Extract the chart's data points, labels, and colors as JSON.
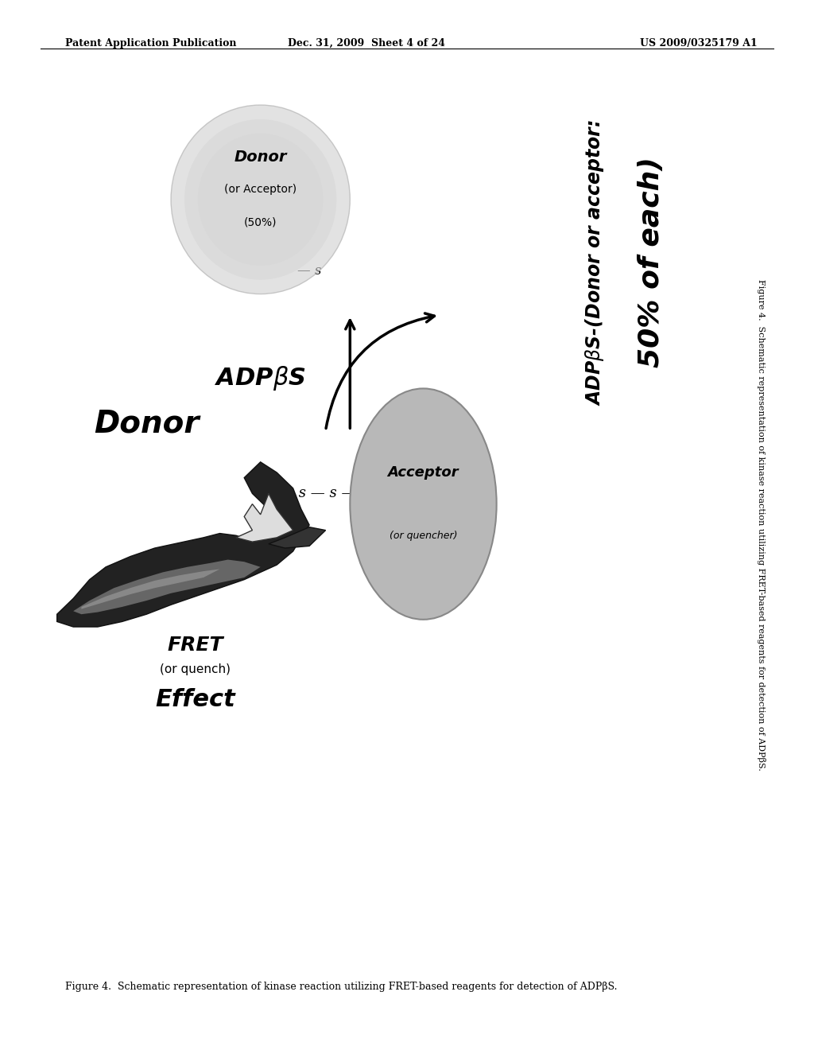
{
  "bg_color": "#ffffff",
  "header_left": "Patent Application Publication",
  "header_center": "Dec. 31, 2009  Sheet 4 of 24",
  "header_right": "US 2009/0325179 A1",
  "figure_caption": "Figure 4.  Schematic representation of kinase reaction utilizing FRET-based reagents for detection of ADPβS.",
  "fret_label_1": "FRET",
  "fret_label_2": "(or quench)",
  "fret_label_3": "Effect",
  "donor_label": "Donor",
  "adpbs_label": "ADPβS",
  "product_line1": "ADPβS-(Donor or acceptor:",
  "product_line2": "50% of each)",
  "donor_acc_line1": "Donor",
  "donor_acc_line2": "(or Acceptor)",
  "donor_acc_line3": "(50%)",
  "acceptor_line1": "Acceptor",
  "acceptor_line2": "(or quencher)",
  "s_bond": "— s — s —",
  "s_free": "— s",
  "acceptor_fill": "#b8b8b8",
  "donor_acc_fill": "#d8d8d8",
  "arrow_color": "#000000"
}
